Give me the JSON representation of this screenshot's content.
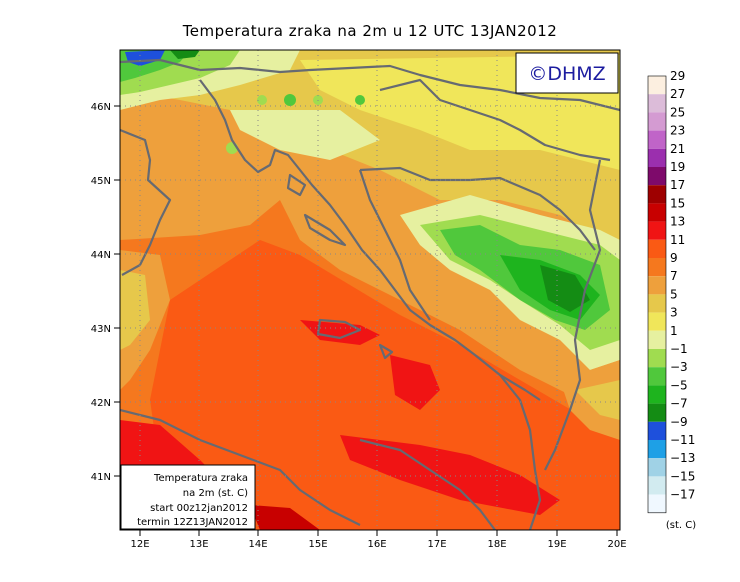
{
  "title": "Temperatura zraka na 2m u 12 UTC 13JAN2012",
  "copyright": "©DHMZ",
  "info_box": {
    "line1": "Temperatura zraka",
    "line2": "na 2m (st. C)",
    "line3": "start 00z12jan2012",
    "line4": "termin 12Z13JAN2012"
  },
  "lat_labels": [
    "46N",
    "45N",
    "44N",
    "43N",
    "42N",
    "41N"
  ],
  "lon_labels": [
    "12E",
    "13E",
    "14E",
    "15E",
    "16E",
    "17E",
    "18E",
    "19E",
    "20E"
  ],
  "colorbar": {
    "unit": "(st. C)",
    "levels": [
      "29",
      "27",
      "25",
      "23",
      "21",
      "19",
      "17",
      "15",
      "13",
      "11",
      "9",
      "7",
      "5",
      "3",
      "1",
      "−1",
      "−3",
      "−5",
      "−7",
      "−9",
      "−11",
      "−13",
      "−15",
      "−17"
    ],
    "colors": [
      "#fcefe0",
      "#dcbcd9",
      "#d49bd2",
      "#c064c8",
      "#9b2fae",
      "#7e0a6b",
      "#9e0000",
      "#c80000",
      "#f01414",
      "#fa5a14",
      "#f5781e",
      "#eea03c",
      "#e6c84b",
      "#f0e65a",
      "#e6f0a0",
      "#a0dc50",
      "#50c83c",
      "#1eb41e",
      "#148c14",
      "#1e50dc",
      "#1ea0e6",
      "#a0d2e6",
      "#d2ebf0",
      "#f0f8ff"
    ]
  }
}
